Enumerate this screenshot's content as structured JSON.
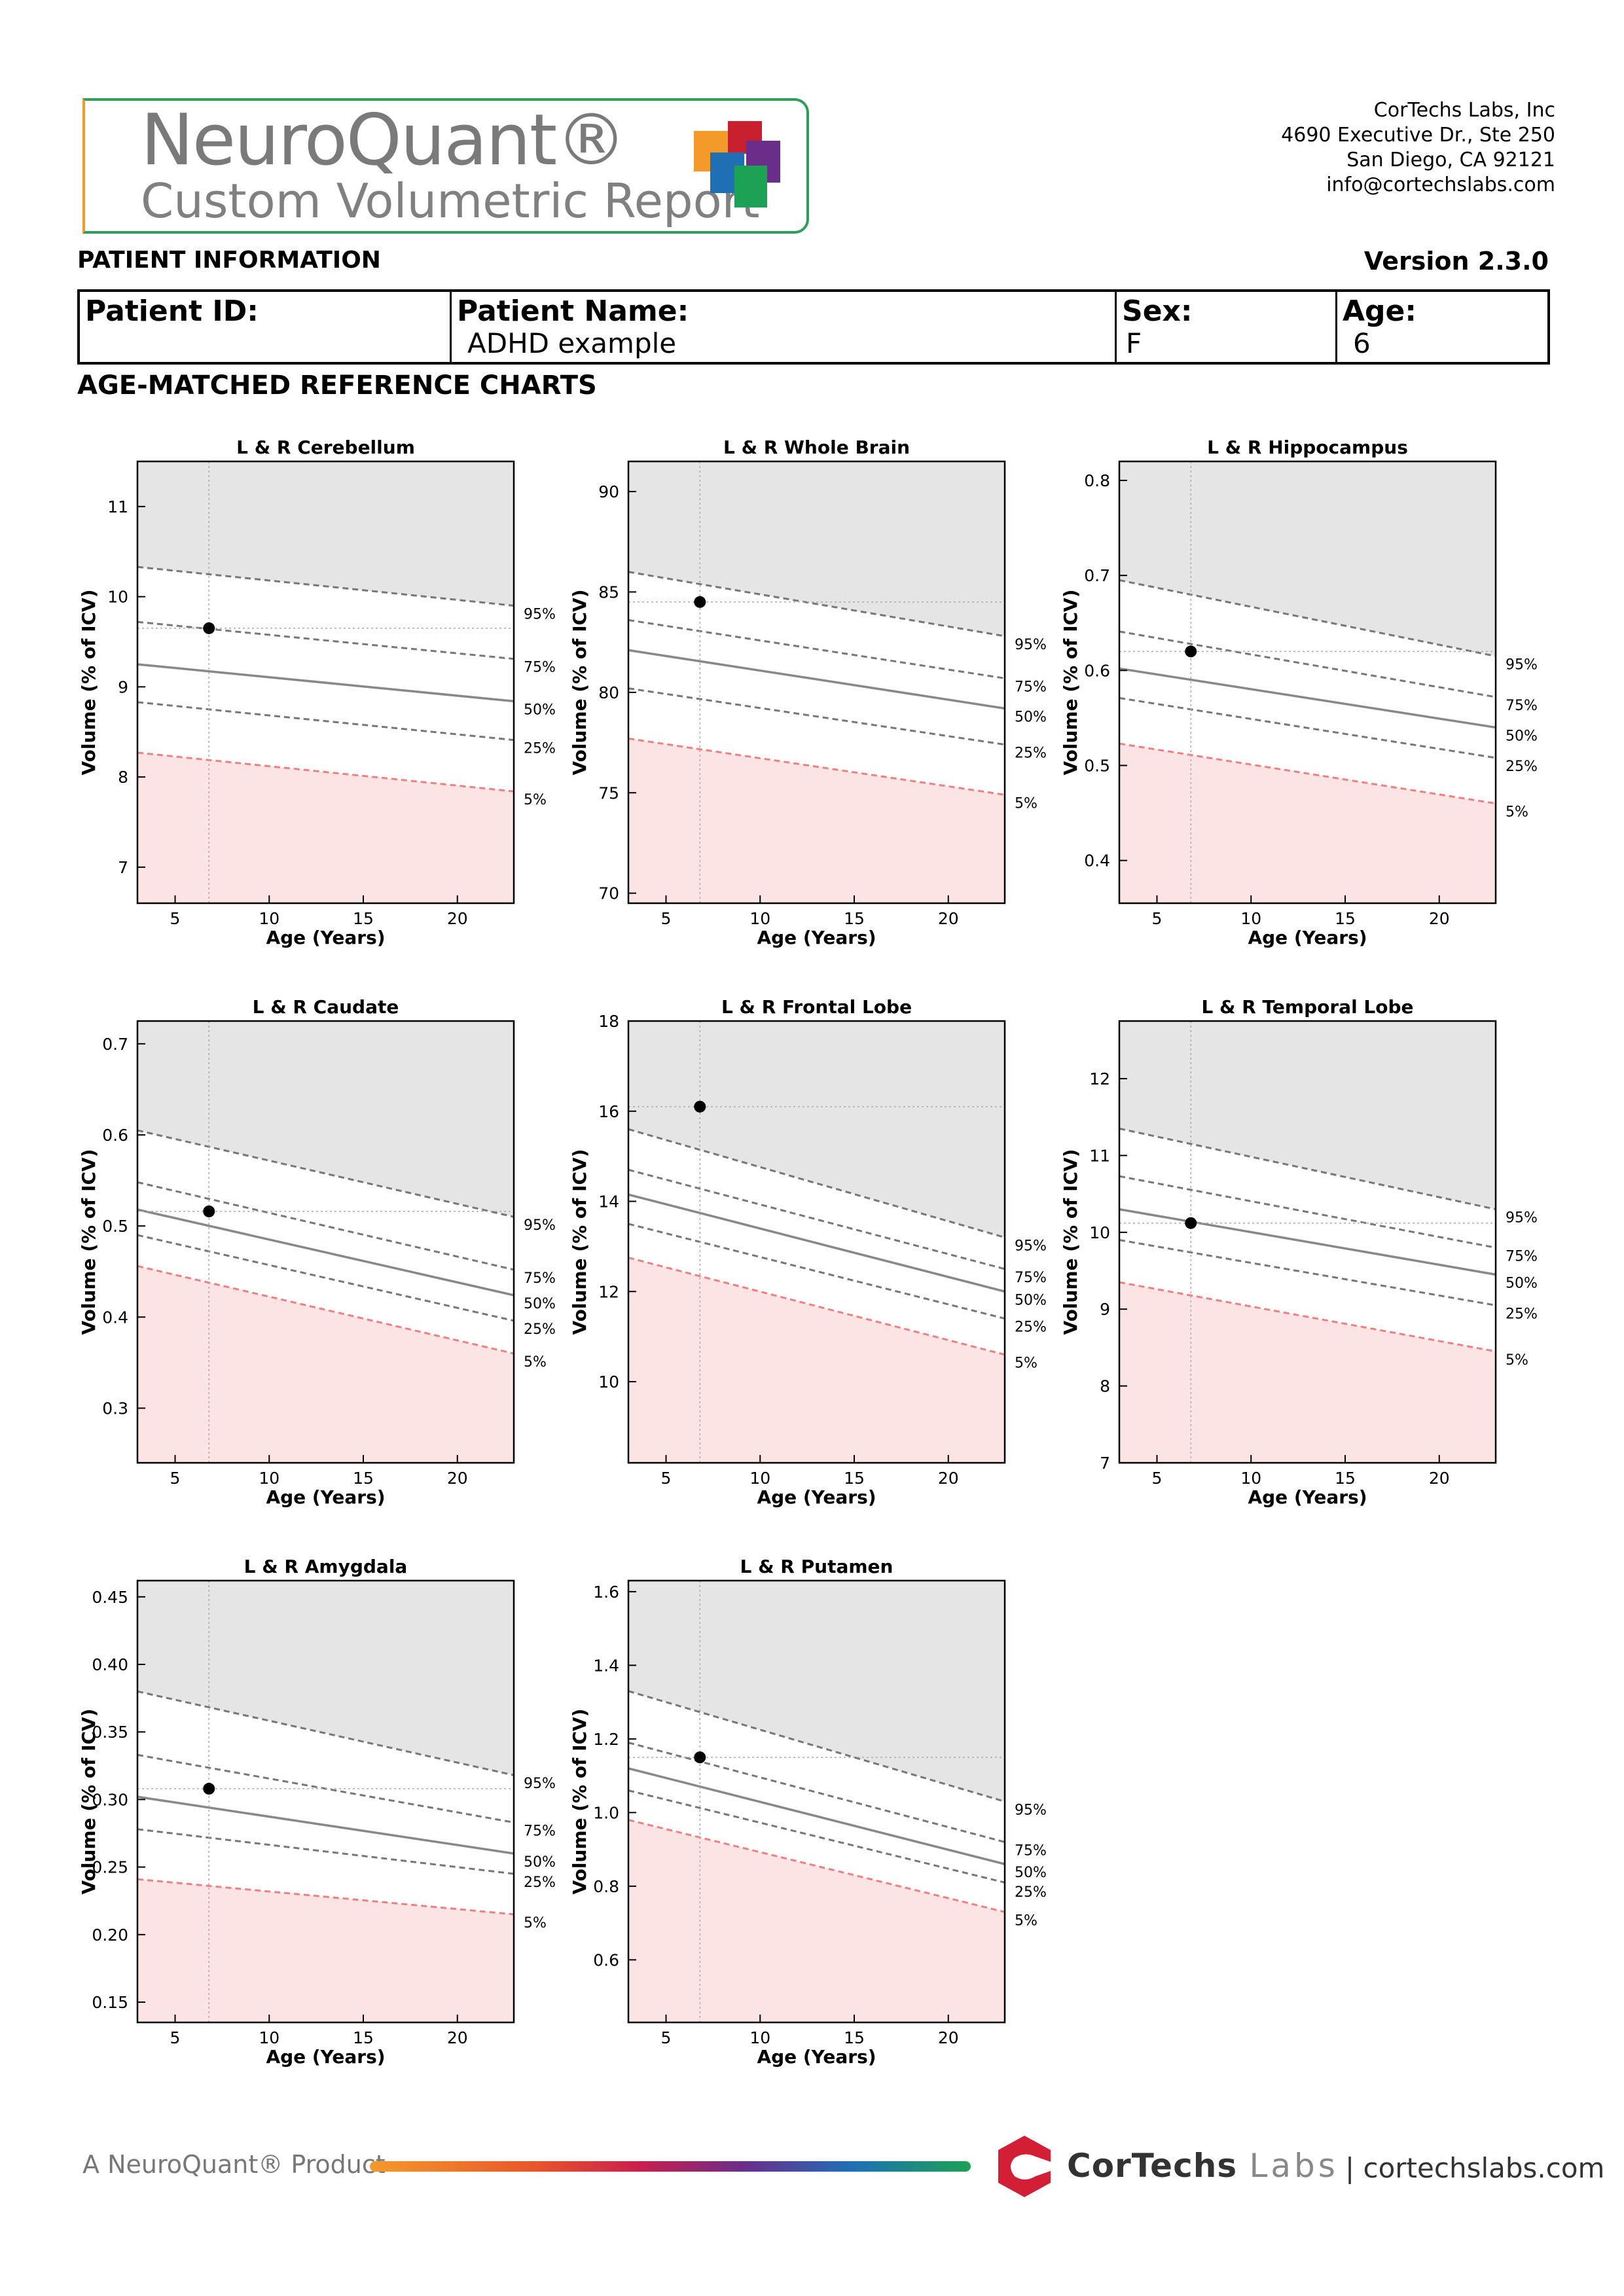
{
  "header": {
    "logo_title": "NeuroQuant®",
    "logo_subtitle": "Custom Volumetric Report",
    "company_lines": [
      "CorTechs Labs, Inc",
      "4690 Executive Dr., Ste 250",
      "San Diego, CA 92121",
      "info@cortechslabs.com"
    ],
    "logo_colors": [
      "#f39a2a",
      "#c8202e",
      "#6b2d8a",
      "#1f6fb5",
      "#1da155"
    ]
  },
  "patient_info": {
    "section_title": "PATIENT INFORMATION",
    "version": "Version 2.3.0",
    "fields": [
      {
        "label": "Patient ID:",
        "value": ""
      },
      {
        "label": "Patient Name:",
        "value": "ADHD example"
      },
      {
        "label": "Sex:",
        "value": "F"
      },
      {
        "label": "Age:",
        "value": "6"
      }
    ]
  },
  "reference_section_title": "AGE-MATCHED REFERENCE CHARTS",
  "chart_data": [
    {
      "type": "line",
      "title": "L & R Cerebellum",
      "xlabel": "Age (Years)",
      "ylabel": "Volume (% of ICV)",
      "xlim": [
        3,
        23
      ],
      "ylim": [
        6.6,
        11.5
      ],
      "xticks": [
        5,
        10,
        15,
        20
      ],
      "yticks": [
        7,
        8,
        9,
        10,
        11
      ],
      "ytick_labels": [
        "7",
        "8",
        "9",
        "10",
        "11"
      ],
      "percentiles": {
        "p5": [
          8.27,
          7.84
        ],
        "p25": [
          8.83,
          8.41
        ],
        "p50": [
          9.25,
          8.84
        ],
        "p75": [
          9.72,
          9.31
        ],
        "p95": [
          10.33,
          9.9
        ]
      },
      "percentile_labels": [
        "95%",
        "75%",
        "50%",
        "25%",
        "5%"
      ],
      "patient": {
        "age": 6.8,
        "value": 9.65
      }
    },
    {
      "type": "line",
      "title": "L & R Whole Brain",
      "xlabel": "Age (Years)",
      "ylabel": "Volume (% of ICV)",
      "xlim": [
        3,
        23
      ],
      "ylim": [
        69.5,
        91.5
      ],
      "xticks": [
        5,
        10,
        15,
        20
      ],
      "yticks": [
        70,
        75,
        80,
        85,
        90
      ],
      "ytick_labels": [
        "70",
        "75",
        "80",
        "85",
        "90"
      ],
      "percentiles": {
        "p5": [
          77.7,
          74.9
        ],
        "p25": [
          80.2,
          77.4
        ],
        "p50": [
          82.1,
          79.2
        ],
        "p75": [
          83.6,
          80.7
        ],
        "p95": [
          86.0,
          82.8
        ]
      },
      "percentile_labels": [
        "95%",
        "75%",
        "50%",
        "25%",
        "5%"
      ],
      "patient": {
        "age": 6.8,
        "value": 84.5
      }
    },
    {
      "type": "line",
      "title": "L & R Hippocampus",
      "xlabel": "Age (Years)",
      "ylabel": "Volume (% of ICV)",
      "xlim": [
        3,
        23
      ],
      "ylim": [
        0.355,
        0.82
      ],
      "xticks": [
        5,
        10,
        15,
        20
      ],
      "yticks": [
        0.4,
        0.5,
        0.6,
        0.7,
        0.8
      ],
      "ytick_labels": [
        "0.4",
        "0.5",
        "0.6",
        "0.7",
        "0.8"
      ],
      "percentiles": {
        "p5": [
          0.523,
          0.46
        ],
        "p25": [
          0.571,
          0.508
        ],
        "p50": [
          0.602,
          0.54
        ],
        "p75": [
          0.641,
          0.572
        ],
        "p95": [
          0.695,
          0.615
        ]
      },
      "percentile_labels": [
        "95%",
        "75%",
        "50%",
        "25%",
        "5%"
      ],
      "patient": {
        "age": 6.8,
        "value": 0.62
      }
    },
    {
      "type": "line",
      "title": "L & R Caudate",
      "xlabel": "Age (Years)",
      "ylabel": "Volume (% of ICV)",
      "xlim": [
        3,
        23
      ],
      "ylim": [
        0.24,
        0.725
      ],
      "xticks": [
        5,
        10,
        15,
        20
      ],
      "yticks": [
        0.3,
        0.4,
        0.5,
        0.6,
        0.7
      ],
      "ytick_labels": [
        "0.3",
        "0.4",
        "0.5",
        "0.6",
        "0.7"
      ],
      "percentiles": {
        "p5": [
          0.456,
          0.36
        ],
        "p25": [
          0.49,
          0.396
        ],
        "p50": [
          0.518,
          0.424
        ],
        "p75": [
          0.548,
          0.452
        ],
        "p95": [
          0.605,
          0.51
        ]
      },
      "percentile_labels": [
        "95%",
        "75%",
        "50%",
        "25%",
        "5%"
      ],
      "patient": {
        "age": 6.8,
        "value": 0.516
      }
    },
    {
      "type": "line",
      "title": "L & R Frontal Lobe",
      "xlabel": "Age (Years)",
      "ylabel": "Volume (% of ICV)",
      "xlim": [
        3,
        23
      ],
      "ylim": [
        8.2,
        18.0
      ],
      "xticks": [
        5,
        10,
        15,
        20
      ],
      "yticks": [
        10,
        12,
        14,
        16,
        18
      ],
      "ytick_labels": [
        "10",
        "12",
        "14",
        "16",
        "18"
      ],
      "percentiles": {
        "p5": [
          12.75,
          10.6
        ],
        "p25": [
          13.5,
          11.4
        ],
        "p50": [
          14.15,
          12.0
        ],
        "p75": [
          14.7,
          12.5
        ],
        "p95": [
          15.6,
          13.2
        ]
      },
      "percentile_labels": [
        "95%",
        "75%",
        "50%",
        "25%",
        "5%"
      ],
      "patient": {
        "age": 6.8,
        "value": 16.1
      }
    },
    {
      "type": "line",
      "title": "L & R Temporal Lobe",
      "xlabel": "Age (Years)",
      "ylabel": "Volume (% of ICV)",
      "xlim": [
        3,
        23
      ],
      "ylim": [
        7.0,
        12.75
      ],
      "xticks": [
        5,
        10,
        15,
        20
      ],
      "yticks": [
        7,
        8,
        9,
        10,
        11,
        12
      ],
      "ytick_labels": [
        "7",
        "8",
        "9",
        "10",
        "11",
        "12"
      ],
      "percentiles": {
        "p5": [
          9.35,
          8.45
        ],
        "p25": [
          9.9,
          9.05
        ],
        "p50": [
          10.3,
          9.45
        ],
        "p75": [
          10.73,
          9.8
        ],
        "p95": [
          11.35,
          10.3
        ]
      },
      "percentile_labels": [
        "95%",
        "75%",
        "50%",
        "25%",
        "5%"
      ],
      "patient": {
        "age": 6.8,
        "value": 10.12
      }
    },
    {
      "type": "line",
      "title": "L & R Amygdala",
      "xlabel": "Age (Years)",
      "ylabel": "Volume (% of ICV)",
      "xlim": [
        3,
        23
      ],
      "ylim": [
        0.135,
        0.462
      ],
      "xticks": [
        5,
        10,
        15,
        20
      ],
      "yticks": [
        0.15,
        0.2,
        0.25,
        0.3,
        0.35,
        0.4,
        0.45
      ],
      "ytick_labels": [
        "0.15",
        "0.20",
        "0.25",
        "0.30",
        "0.35",
        "0.40",
        "0.45"
      ],
      "percentiles": {
        "p5": [
          0.241,
          0.215
        ],
        "p25": [
          0.278,
          0.245
        ],
        "p50": [
          0.302,
          0.26
        ],
        "p75": [
          0.333,
          0.283
        ],
        "p95": [
          0.38,
          0.318
        ]
      },
      "percentile_labels": [
        "95%",
        "75%",
        "50%",
        "25%",
        "5%"
      ],
      "patient": {
        "age": 6.8,
        "value": 0.308
      }
    },
    {
      "type": "line",
      "title": "L & R Putamen",
      "xlabel": "Age (Years)",
      "ylabel": "Volume (% of ICV)",
      "xlim": [
        3,
        23
      ],
      "ylim": [
        0.43,
        1.63
      ],
      "xticks": [
        5,
        10,
        15,
        20
      ],
      "yticks": [
        0.6,
        0.8,
        1.0,
        1.2,
        1.4,
        1.6
      ],
      "ytick_labels": [
        "0.6",
        "0.8",
        "1.0",
        "1.2",
        "1.4",
        "1.6"
      ],
      "percentiles": {
        "p5": [
          0.98,
          0.73
        ],
        "p25": [
          1.06,
          0.81
        ],
        "p50": [
          1.12,
          0.86
        ],
        "p75": [
          1.19,
          0.92
        ],
        "p95": [
          1.33,
          1.03
        ]
      },
      "percentile_labels": [
        "95%",
        "75%",
        "50%",
        "25%",
        "5%"
      ],
      "patient": {
        "age": 6.8,
        "value": 1.15
      }
    }
  ],
  "footer": {
    "product_text": "A NeuroQuant® Product",
    "brand_main": "CorTechs",
    "brand_labs": "Labs",
    "url": "| cortechslabs.com"
  }
}
